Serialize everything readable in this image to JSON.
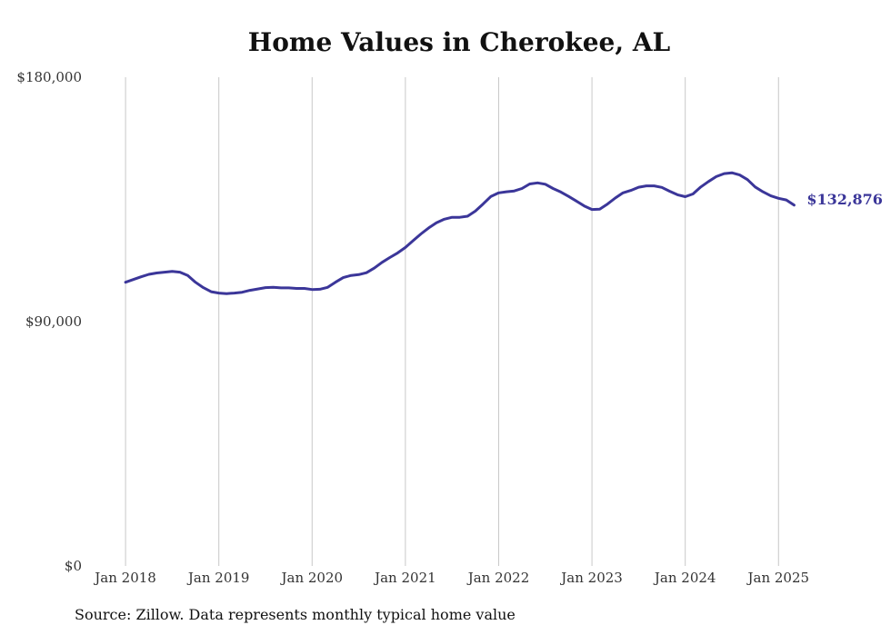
{
  "chart_data": {
    "type": "line",
    "title": "Home Values in Cherokee, AL",
    "xlabel": "",
    "ylabel": "",
    "ylim": [
      0,
      180000
    ],
    "yticks": [
      {
        "value": 0,
        "label": "$0"
      },
      {
        "value": 90000,
        "label": "$90,000"
      },
      {
        "value": 180000,
        "label": "$180,000"
      }
    ],
    "xticks": [
      {
        "value": 2018.0,
        "label": "Jan 2018"
      },
      {
        "value": 2019.0,
        "label": "Jan 2019"
      },
      {
        "value": 2020.0,
        "label": "Jan 2020"
      },
      {
        "value": 2021.0,
        "label": "Jan 2021"
      },
      {
        "value": 2022.0,
        "label": "Jan 2022"
      },
      {
        "value": 2023.0,
        "label": "Jan 2023"
      },
      {
        "value": 2024.0,
        "label": "Jan 2024"
      },
      {
        "value": 2025.0,
        "label": "Jan 2025"
      }
    ],
    "xlim": [
      2017.58,
      2025.28
    ],
    "grid": {
      "vertical": true,
      "horizontal": false
    },
    "line_color": "#3b3699",
    "end_label": "$132,876",
    "series": [
      {
        "name": "",
        "x": [
          2018.0,
          2018.083,
          2018.167,
          2018.25,
          2018.333,
          2018.417,
          2018.5,
          2018.583,
          2018.667,
          2018.75,
          2018.833,
          2018.917,
          2019.0,
          2019.083,
          2019.167,
          2019.25,
          2019.333,
          2019.417,
          2019.5,
          2019.583,
          2019.667,
          2019.75,
          2019.833,
          2019.917,
          2020.0,
          2020.083,
          2020.167,
          2020.25,
          2020.333,
          2020.417,
          2020.5,
          2020.583,
          2020.667,
          2020.75,
          2020.833,
          2020.917,
          2021.0,
          2021.083,
          2021.167,
          2021.25,
          2021.333,
          2021.417,
          2021.5,
          2021.583,
          2021.667,
          2021.75,
          2021.833,
          2021.917,
          2022.0,
          2022.083,
          2022.167,
          2022.25,
          2022.333,
          2022.417,
          2022.5,
          2022.583,
          2022.667,
          2022.75,
          2022.833,
          2022.917,
          2023.0,
          2023.083,
          2023.167,
          2023.25,
          2023.333,
          2023.417,
          2023.5,
          2023.583,
          2023.667,
          2023.75,
          2023.833,
          2023.917,
          2024.0,
          2024.083,
          2024.167,
          2024.25,
          2024.333,
          2024.417,
          2024.5,
          2024.583,
          2024.667,
          2024.75,
          2024.833,
          2024.917,
          2025.0,
          2025.083,
          2025.167
        ],
        "values": [
          104500,
          105500,
          106500,
          107400,
          107900,
          108200,
          108500,
          108200,
          107000,
          104500,
          102500,
          101000,
          100500,
          100300,
          100500,
          100800,
          101500,
          102000,
          102500,
          102600,
          102400,
          102400,
          102200,
          102200,
          101800,
          101900,
          102600,
          104500,
          106200,
          107000,
          107300,
          108000,
          109700,
          111800,
          113600,
          115300,
          117300,
          119800,
          122300,
          124500,
          126400,
          127700,
          128400,
          128400,
          128800,
          130700,
          133300,
          136100,
          137400,
          137800,
          138100,
          139000,
          140700,
          141100,
          140600,
          139000,
          137700,
          136100,
          134400,
          132600,
          131300,
          131400,
          133300,
          135500,
          137400,
          138300,
          139500,
          140000,
          140000,
          139400,
          138000,
          136700,
          136000,
          137000,
          139600,
          141600,
          143400,
          144500,
          144800,
          144000,
          142300,
          139600,
          137800,
          136300,
          135400,
          134800,
          132876
        ]
      }
    ]
  },
  "source_note": "Source: Zillow. Data represents monthly typical home value"
}
